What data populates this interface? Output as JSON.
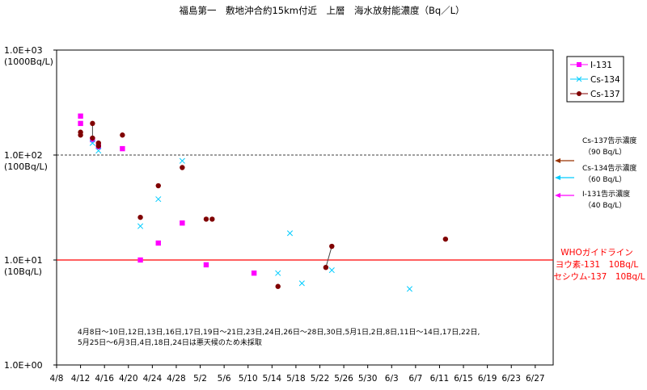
{
  "chart_data": {
    "type": "scatter",
    "title": "福島第一　敷地沖合約15km付近　上層　海水放射能濃度（Bq／L）",
    "xlabel": "",
    "ylabel": "",
    "y_scale": "log",
    "ylim": [
      1,
      1000
    ],
    "y_ticks": [
      {
        "value": 1000,
        "label": "1.0E+03",
        "sublabel": "(1000Bq/L)"
      },
      {
        "value": 100,
        "label": "1.0E+02",
        "sublabel": "(100Bq/L)"
      },
      {
        "value": 10,
        "label": "1.0E+01",
        "sublabel": "(10Bq/L)"
      },
      {
        "value": 1,
        "label": "1.0E+00",
        "sublabel": ""
      }
    ],
    "xlim": [
      "2011-04-08",
      "2011-06-30"
    ],
    "x_ticks": [
      "4/8",
      "4/12",
      "4/16",
      "4/20",
      "4/24",
      "4/28",
      "5/2",
      "5/6",
      "5/10",
      "5/14",
      "5/18",
      "5/22",
      "5/26",
      "5/30",
      "6/3",
      "6/7",
      "6/11",
      "6/15",
      "6/19",
      "6/23",
      "6/27"
    ],
    "x_tick_dates": [
      "2011-04-08",
      "2011-04-12",
      "2011-04-16",
      "2011-04-20",
      "2011-04-24",
      "2011-04-28",
      "2011-05-02",
      "2011-05-06",
      "2011-05-10",
      "2011-05-14",
      "2011-05-18",
      "2011-05-22",
      "2011-05-26",
      "2011-05-30",
      "2011-06-03",
      "2011-06-07",
      "2011-06-11",
      "2011-06-15",
      "2011-06-19",
      "2011-06-23",
      "2011-06-27"
    ],
    "grid": false,
    "legend_position": "right",
    "series": [
      {
        "name": "I-131",
        "color": "#ff00ff",
        "marker": "square",
        "points": [
          {
            "x": "2011-04-12",
            "y": 235
          },
          {
            "x": "2011-04-12",
            "y": 200
          },
          {
            "x": "2011-04-14",
            "y": 140
          },
          {
            "x": "2011-04-15",
            "y": 120
          },
          {
            "x": "2011-04-19",
            "y": 115
          },
          {
            "x": "2011-04-22",
            "y": 10
          },
          {
            "x": "2011-04-25",
            "y": 14.5
          },
          {
            "x": "2011-04-29",
            "y": 22.5
          },
          {
            "x": "2011-05-03",
            "y": 9
          },
          {
            "x": "2011-05-11",
            "y": 7.5
          }
        ]
      },
      {
        "name": "Cs-134",
        "color": "#00ccff",
        "marker": "x",
        "points": [
          {
            "x": "2011-04-14",
            "y": 130
          },
          {
            "x": "2011-04-15",
            "y": 110
          },
          {
            "x": "2011-04-22",
            "y": 21
          },
          {
            "x": "2011-04-25",
            "y": 38
          },
          {
            "x": "2011-04-29",
            "y": 88
          },
          {
            "x": "2011-05-15",
            "y": 7.5
          },
          {
            "x": "2011-05-17",
            "y": 18
          },
          {
            "x": "2011-05-19",
            "y": 6
          },
          {
            "x": "2011-05-24",
            "y": 8
          },
          {
            "x": "2011-06-06",
            "y": 5.3
          }
        ]
      },
      {
        "name": "Cs-137",
        "color": "#800000",
        "marker": "circle",
        "points": [
          {
            "x": "2011-04-12",
            "y": 165
          },
          {
            "x": "2011-04-12",
            "y": 155
          },
          {
            "x": "2011-04-14",
            "y": 200
          },
          {
            "x": "2011-04-14",
            "y": 145
          },
          {
            "x": "2011-04-15",
            "y": 130
          },
          {
            "x": "2011-04-15",
            "y": 122
          },
          {
            "x": "2011-04-19",
            "y": 155
          },
          {
            "x": "2011-04-22",
            "y": 25.5
          },
          {
            "x": "2011-04-25",
            "y": 51
          },
          {
            "x": "2011-04-29",
            "y": 76
          },
          {
            "x": "2011-05-03",
            "y": 24.5
          },
          {
            "x": "2011-05-04",
            "y": 24.5
          },
          {
            "x": "2011-05-15",
            "y": 5.6
          },
          {
            "x": "2011-05-23",
            "y": 8.5
          },
          {
            "x": "2011-05-24",
            "y": 13.5
          },
          {
            "x": "2011-06-12",
            "y": 15.8
          }
        ]
      }
    ],
    "reference_lines": [
      {
        "y": 100,
        "style": "dashed",
        "color": "#000000"
      },
      {
        "y": 10,
        "style": "solid",
        "color": "#ff0000"
      }
    ],
    "limit_labels": [
      {
        "line1": "Cs-137告示濃度",
        "line2": "（90  Bq/L）",
        "y": 90,
        "color": "#993300"
      },
      {
        "line1": "Cs-134告示濃度",
        "line2": "（60  Bq/L）",
        "y": 60,
        "color": "#00ccff"
      },
      {
        "line1": "I-131告示濃度",
        "line2": "（40  Bq/L）",
        "y": 40,
        "color": "#ff00ff"
      }
    ],
    "who_label": [
      "WHOガイドライン",
      "ヨウ素-131　10Bq/L",
      "セシウム-137　10Bq/L"
    ],
    "annotation": [
      "4月8日～10日,12日,13日,16日,17日,19日～21日,23日,24日,26日～28日,30日,5月1日,2日,8日,11日～14日,17日,22日,",
      "5月25日～6月3日,4日,18日,24日は悪天候のため未採取"
    ]
  }
}
